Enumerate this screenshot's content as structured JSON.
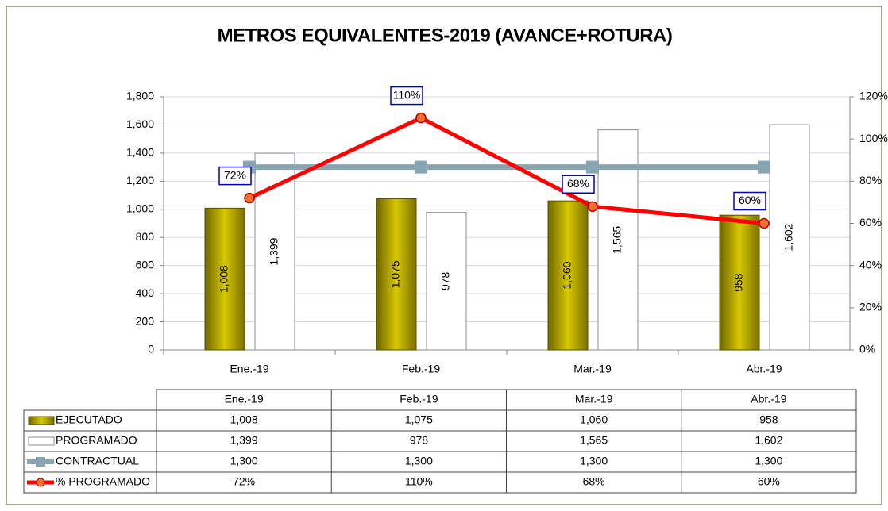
{
  "chart_data": {
    "type": "bar",
    "title": "METROS EQUIVALENTES-2019 (AVANCE+ROTURA)",
    "categories": [
      "Ene.-19",
      "Feb.-19",
      "Mar.-19",
      "Abr.-19"
    ],
    "series": [
      {
        "name": "EJECUTADO",
        "type": "bar",
        "color": "#c2b200",
        "values": [
          1008,
          1075,
          1060,
          958
        ],
        "value_labels": [
          "1,008",
          "1,075",
          "1,060",
          "958"
        ]
      },
      {
        "name": "PROGRAMADO",
        "type": "bar",
        "color": "#ffffff",
        "values": [
          1399,
          978,
          1565,
          1602
        ],
        "value_labels": [
          "1,399",
          "978",
          "1,565",
          "1,602"
        ]
      },
      {
        "name": "CONTRACTUAL",
        "type": "line",
        "color": "#8aa5b2",
        "values": [
          1300,
          1300,
          1300,
          1300
        ],
        "value_labels": [
          "1,300",
          "1,300",
          "1,300",
          "1,300"
        ]
      },
      {
        "name": "% PROGRAMADO",
        "type": "line",
        "axis": "y2",
        "color": "#ff0000",
        "values": [
          72,
          110,
          68,
          60
        ],
        "value_labels": [
          "72%",
          "110%",
          "68%",
          "60%"
        ]
      }
    ],
    "ylim": [
      0,
      1800
    ],
    "yticks": [
      0,
      200,
      400,
      600,
      800,
      {
        "value": 1000,
        "label": "1,000"
      },
      {
        "value": 1200,
        "label": "1,200"
      },
      {
        "value": 1400,
        "label": "1,400"
      },
      {
        "value": 1600,
        "label": "1,600"
      },
      {
        "value": 1800,
        "label": "1,800"
      }
    ],
    "y2lim": [
      0,
      120
    ],
    "y2ticks": [
      {
        "value": 0,
        "label": "0%"
      },
      {
        "value": 20,
        "label": "20%"
      },
      {
        "value": 40,
        "label": "40%"
      },
      {
        "value": 60,
        "label": "60%"
      },
      {
        "value": 80,
        "label": "80%"
      },
      {
        "value": 100,
        "label": "100%"
      },
      {
        "value": 120,
        "label": "120%"
      }
    ],
    "grid": true,
    "data_table": true
  }
}
